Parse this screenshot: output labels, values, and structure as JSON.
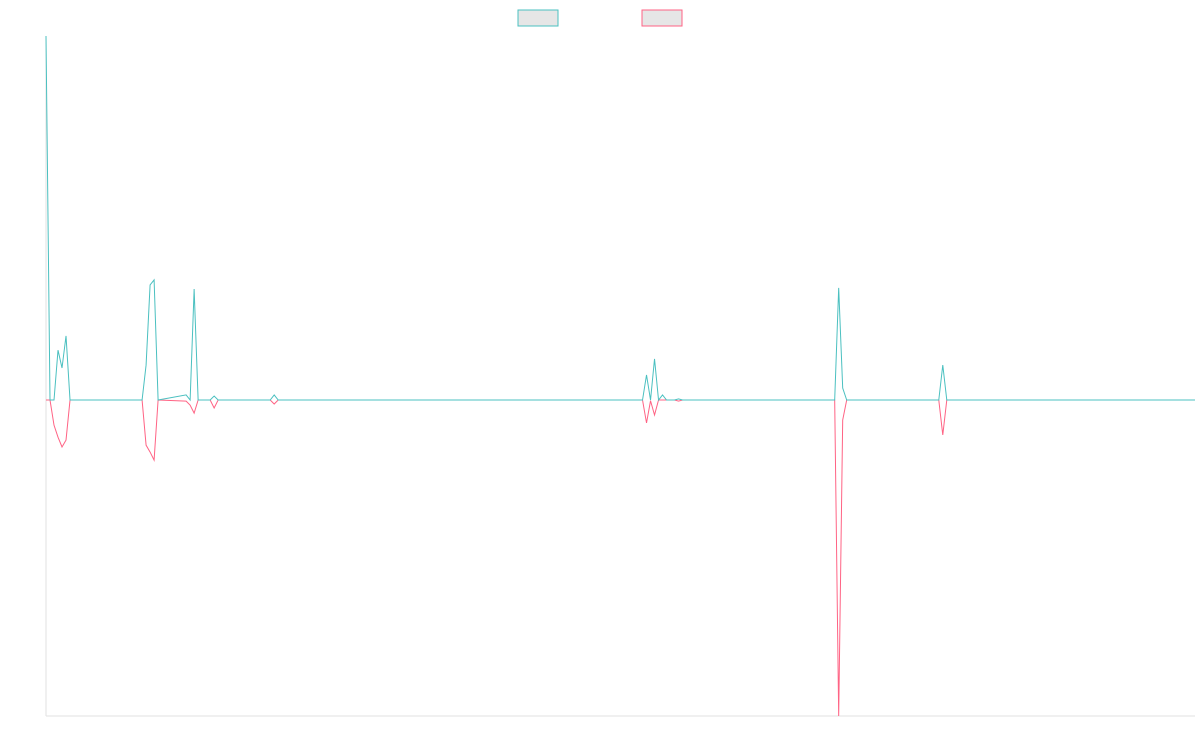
{
  "chart_data": {
    "type": "line",
    "x": [
      0,
      1,
      2,
      3,
      4,
      5,
      6,
      24,
      25,
      26,
      27,
      28,
      35,
      36,
      37,
      38,
      41,
      42,
      43,
      56,
      57,
      58,
      149,
      150,
      151,
      152,
      153,
      154,
      155,
      157,
      158,
      159,
      197,
      198,
      199,
      200,
      223,
      224,
      225,
      287
    ],
    "xlim": [
      0,
      287
    ],
    "ylim": [
      -868,
      1000
    ],
    "grid": false,
    "legend": "top",
    "series": [
      {
        "color": "#4bc0c0",
        "values": [
          1000,
          0,
          0,
          137,
          88,
          176,
          0,
          0,
          96,
          316,
          330,
          0,
          14,
          0,
          305,
          0,
          0,
          11,
          0,
          0,
          14,
          0,
          0,
          69,
          0,
          113,
          0,
          14,
          0,
          0,
          3,
          0,
          0,
          308,
          33,
          0,
          0,
          96,
          0,
          0
        ]
      },
      {
        "color": "#ff6384",
        "values": [
          0,
          0,
          -69,
          -102,
          -129,
          -110,
          0,
          0,
          -124,
          -143,
          -165,
          0,
          -3,
          -14,
          -36,
          0,
          0,
          -22,
          0,
          0,
          -11,
          0,
          0,
          -63,
          -2,
          -41,
          0,
          0,
          0,
          0,
          -3,
          0,
          0,
          -868,
          -55,
          0,
          0,
          -96,
          0,
          0
        ]
      }
    ]
  }
}
